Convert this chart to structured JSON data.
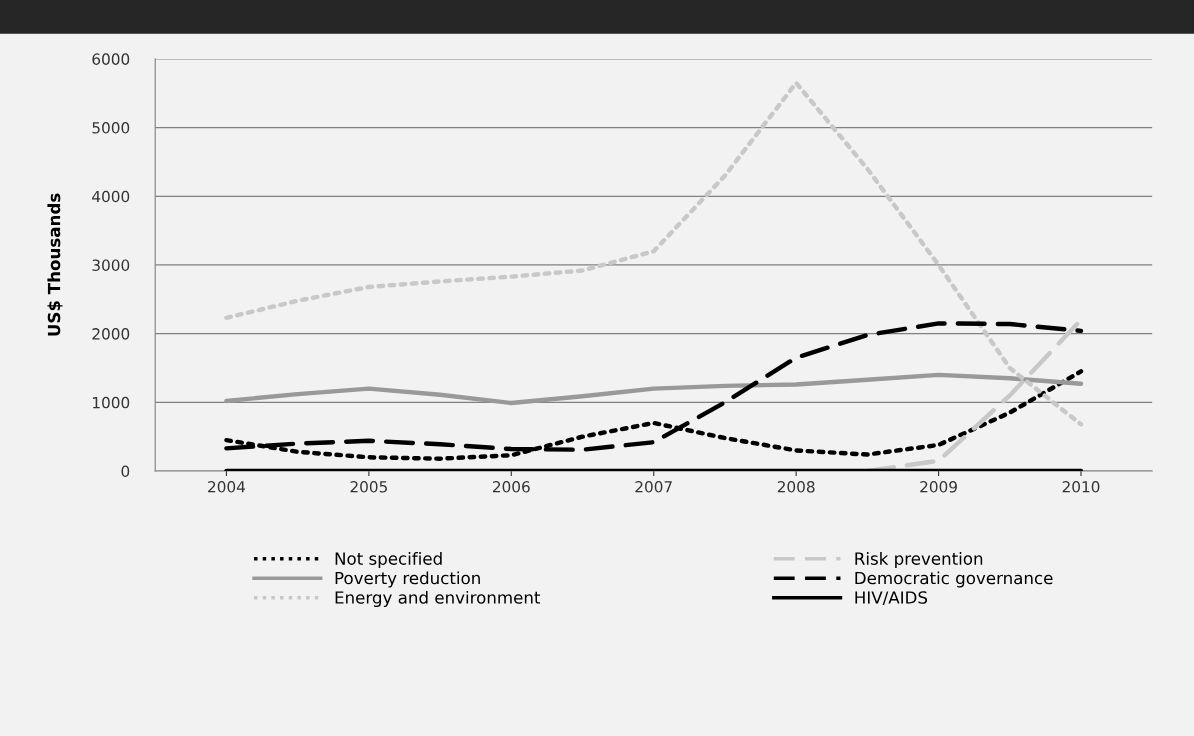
{
  "chart_data": {
    "type": "line",
    "ylabel": "US$ Thousands",
    "x": [
      2004,
      2004.5,
      2005,
      2005.5,
      2006,
      2006.5,
      2007,
      2007.5,
      2008,
      2008.5,
      2009,
      2009.5,
      2010
    ],
    "xlim": [
      2003.5,
      2010.5
    ],
    "xticks": [
      2004,
      2005,
      2006,
      2007,
      2008,
      2009,
      2010
    ],
    "ylim": [
      0,
      6000
    ],
    "yticks": [
      0,
      1000,
      2000,
      3000,
      4000,
      5000,
      6000
    ],
    "grid": "y",
    "legend": "bottom",
    "marker": "none",
    "series": [
      {
        "name": "Not specified",
        "color": "#000000",
        "line_style": "dotted",
        "values": [
          450,
          280,
          200,
          180,
          230,
          500,
          700,
          480,
          300,
          240,
          380,
          850,
          1450
        ]
      },
      {
        "name": "Poverty reduction",
        "color": "#999999",
        "line_style": "solid",
        "values": [
          1020,
          1120,
          1200,
          1110,
          990,
          1090,
          1200,
          1240,
          1260,
          1330,
          1400,
          1350,
          1270
        ]
      },
      {
        "name": "Energy and environment",
        "color": "#c8c8c8",
        "line_style": "dotted",
        "values": [
          2230,
          2480,
          2680,
          2760,
          2830,
          2920,
          3200,
          4300,
          5650,
          4400,
          3000,
          1500,
          680
        ]
      },
      {
        "name": "Risk prevention",
        "color": "#c8c8c8",
        "line_style": "dashed",
        "values": [
          null,
          null,
          null,
          null,
          null,
          null,
          null,
          null,
          null,
          0,
          150,
          1100,
          2200
        ]
      },
      {
        "name": "Democratic governance",
        "color": "#000000",
        "line_style": "dashed",
        "values": [
          330,
          400,
          440,
          390,
          320,
          310,
          420,
          1000,
          1650,
          1980,
          2150,
          2140,
          2040
        ]
      },
      {
        "name": "HIV/AIDS",
        "color": "#000000",
        "line_style": "solid",
        "values": [
          0,
          0,
          0,
          0,
          0,
          0,
          0,
          0,
          0,
          0,
          0,
          0,
          0
        ]
      }
    ]
  }
}
